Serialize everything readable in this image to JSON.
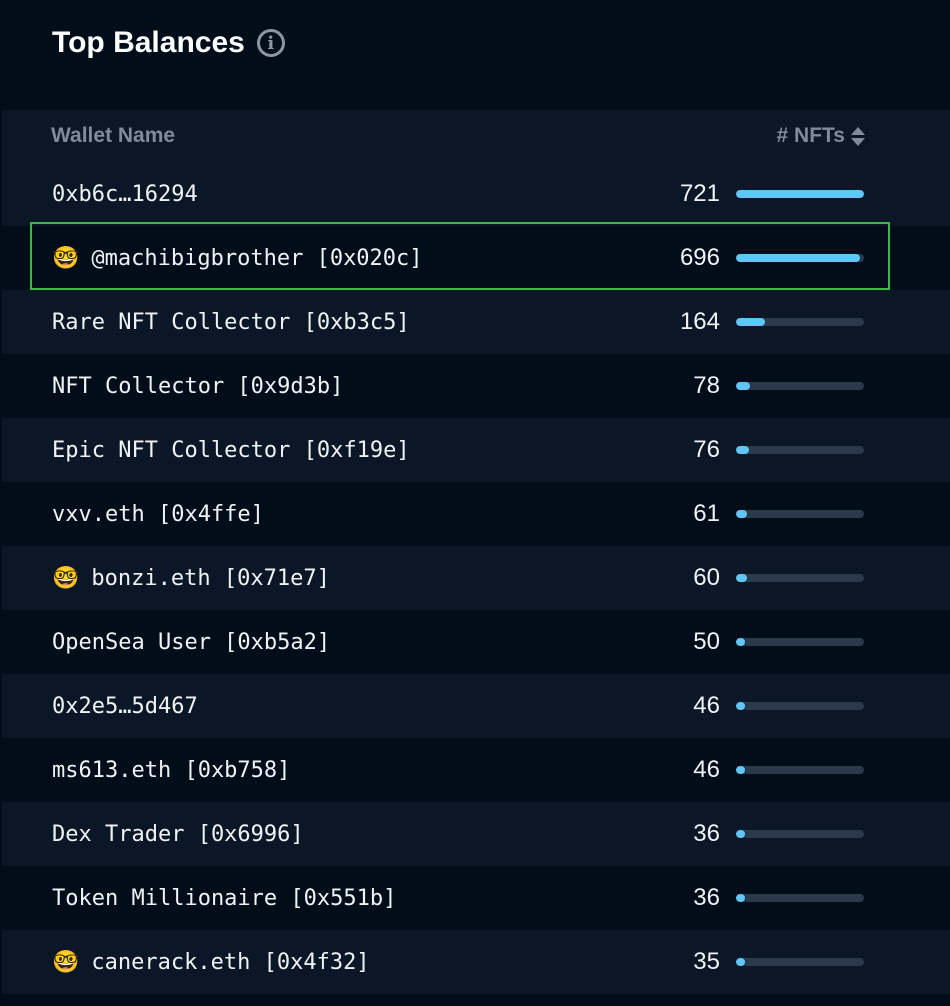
{
  "title": "Top Balances",
  "info_icon": "info-icon",
  "columns": {
    "wallet": "Wallet Name",
    "nfts": "# NFTs"
  },
  "colors": {
    "bar": "#5fc6f5",
    "track": "#2a3a4a",
    "selected_border": "#3cb84a"
  },
  "max_value": 721,
  "rows": [
    {
      "name": "0xb6c…16294",
      "emoji": "",
      "value": 721
    },
    {
      "name": "@machibigbrother [0x020c]",
      "emoji": "🤓",
      "value": 696,
      "selected": true
    },
    {
      "name": "Rare NFT Collector [0xb3c5]",
      "emoji": "",
      "value": 164
    },
    {
      "name": "NFT Collector [0x9d3b]",
      "emoji": "",
      "value": 78
    },
    {
      "name": "Epic NFT Collector [0xf19e]",
      "emoji": "",
      "value": 76
    },
    {
      "name": "vxv.eth [0x4ffe]",
      "emoji": "",
      "value": 61
    },
    {
      "name": "bonzi.eth [0x71e7]",
      "emoji": "🤓",
      "value": 60
    },
    {
      "name": "OpenSea User [0xb5a2]",
      "emoji": "",
      "value": 50
    },
    {
      "name": "0x2e5…5d467",
      "emoji": "",
      "value": 46
    },
    {
      "name": "ms613.eth [0xb758]",
      "emoji": "",
      "value": 46
    },
    {
      "name": "Dex Trader [0x6996]",
      "emoji": "",
      "value": 36
    },
    {
      "name": "Token Millionaire [0x551b]",
      "emoji": "",
      "value": 36
    },
    {
      "name": "canerack.eth [0x4f32]",
      "emoji": "🤓",
      "value": 35
    }
  ]
}
